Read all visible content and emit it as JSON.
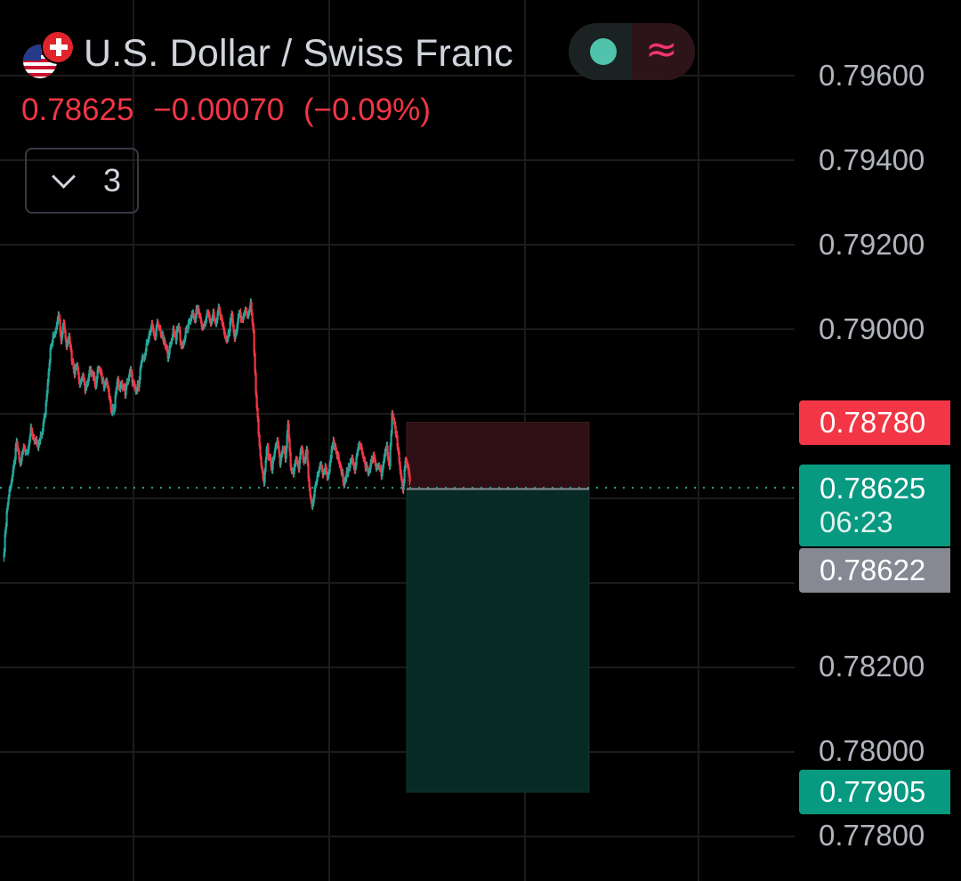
{
  "header": {
    "symbol_name": "U.S. Dollar / Swiss Franc",
    "flag_base": "us-flag",
    "flag_quote": "switzerland-flag",
    "last_price": "0.78625",
    "change": "−0.00070",
    "change_percent": "(−0.09%)",
    "indicator_count": "3"
  },
  "toggle": {
    "dot_icon": "market-status-dot-icon",
    "approx_icon": "≈"
  },
  "price_scale": {
    "ticks": [
      "0.79600",
      "0.79400",
      "0.79200",
      "0.79000",
      "0.78200",
      "0.78000",
      "0.77800"
    ],
    "stop_loss_label": "0.78780",
    "last_price_label": "0.78625",
    "countdown": "06:23",
    "entry_label": "0.78622",
    "take_profit_label": "0.77905"
  },
  "colors": {
    "up": "#26a69a",
    "down": "#f23645",
    "background": "#000000",
    "grid": "#1c1c1c",
    "last_price_tag": "#089981",
    "stop_loss_tag": "#f23645",
    "entry_tag": "#868993",
    "profit_zone": "#082a24",
    "loss_zone": "#2e1014"
  },
  "chart_data": {
    "type": "candlestick",
    "instrument": "USD/CHF",
    "ylim": [
      0.7775,
      0.7972
    ],
    "y_ticks": [
      0.796,
      0.794,
      0.792,
      0.79,
      0.782,
      0.78,
      0.778
    ],
    "grid": true,
    "last_price": 0.78625,
    "close_path": [
      [
        0,
        0.7848
      ],
      [
        3,
        0.7857
      ],
      [
        6,
        0.7862
      ],
      [
        10,
        0.7866
      ],
      [
        14,
        0.7873
      ],
      [
        18,
        0.7868
      ],
      [
        22,
        0.7872
      ],
      [
        26,
        0.7871
      ],
      [
        30,
        0.7876
      ],
      [
        34,
        0.7874
      ],
      [
        38,
        0.7872
      ],
      [
        42,
        0.7875
      ],
      [
        46,
        0.788
      ],
      [
        49,
        0.7888
      ],
      [
        52,
        0.7895
      ],
      [
        55,
        0.7898
      ],
      [
        58,
        0.79
      ],
      [
        61,
        0.7904
      ],
      [
        64,
        0.7898
      ],
      [
        67,
        0.7902
      ],
      [
        70,
        0.7896
      ],
      [
        73,
        0.7899
      ],
      [
        76,
        0.7893
      ],
      [
        79,
        0.789
      ],
      [
        82,
        0.7892
      ],
      [
        85,
        0.7887
      ],
      [
        88,
        0.7889
      ],
      [
        91,
        0.7886
      ],
      [
        94,
        0.7887
      ],
      [
        97,
        0.7891
      ],
      [
        100,
        0.7889
      ],
      [
        103,
        0.7887
      ],
      [
        106,
        0.7891
      ],
      [
        109,
        0.7889
      ],
      [
        112,
        0.7887
      ],
      [
        115,
        0.7888
      ],
      [
        118,
        0.7884
      ],
      [
        121,
        0.788
      ],
      [
        124,
        0.7882
      ],
      [
        127,
        0.7888
      ],
      [
        130,
        0.7886
      ],
      [
        133,
        0.7887
      ],
      [
        136,
        0.7885
      ],
      [
        139,
        0.7888
      ],
      [
        142,
        0.789
      ],
      [
        145,
        0.7887
      ],
      [
        148,
        0.7885
      ],
      [
        151,
        0.7887
      ],
      [
        154,
        0.7892
      ],
      [
        157,
        0.7893
      ],
      [
        160,
        0.7896
      ],
      [
        163,
        0.7899
      ],
      [
        166,
        0.7901
      ],
      [
        169,
        0.7898
      ],
      [
        172,
        0.7901
      ],
      [
        175,
        0.79
      ],
      [
        178,
        0.7898
      ],
      [
        181,
        0.7896
      ],
      [
        184,
        0.7894
      ],
      [
        187,
        0.7896
      ],
      [
        190,
        0.79
      ],
      [
        193,
        0.7898
      ],
      [
        196,
        0.7901
      ],
      [
        199,
        0.7896
      ],
      [
        202,
        0.7897
      ],
      [
        205,
        0.79
      ],
      [
        208,
        0.7901
      ],
      [
        211,
        0.7904
      ],
      [
        214,
        0.7902
      ],
      [
        217,
        0.7905
      ],
      [
        220,
        0.7903
      ],
      [
        223,
        0.79
      ],
      [
        226,
        0.7902
      ],
      [
        229,
        0.7904
      ],
      [
        232,
        0.7901
      ],
      [
        235,
        0.7904
      ],
      [
        238,
        0.7901
      ],
      [
        241,
        0.7905
      ],
      [
        244,
        0.7903
      ],
      [
        247,
        0.7899
      ],
      [
        250,
        0.7897
      ],
      [
        253,
        0.79
      ],
      [
        256,
        0.7903
      ],
      [
        259,
        0.7898
      ],
      [
        262,
        0.7901
      ],
      [
        265,
        0.7904
      ],
      [
        268,
        0.7902
      ],
      [
        271,
        0.7905
      ],
      [
        274,
        0.7903
      ],
      [
        277,
        0.7906
      ],
      [
        280,
        0.79
      ],
      [
        283,
        0.7885
      ],
      [
        286,
        0.7875
      ],
      [
        289,
        0.7868
      ],
      [
        292,
        0.7863
      ],
      [
        295,
        0.7872
      ],
      [
        298,
        0.787
      ],
      [
        301,
        0.7867
      ],
      [
        304,
        0.7871
      ],
      [
        307,
        0.7874
      ],
      [
        310,
        0.7868
      ],
      [
        313,
        0.7872
      ],
      [
        316,
        0.787
      ],
      [
        319,
        0.7877
      ],
      [
        322,
        0.7867
      ],
      [
        325,
        0.7866
      ],
      [
        328,
        0.7869
      ],
      [
        331,
        0.7867
      ],
      [
        334,
        0.7872
      ],
      [
        337,
        0.7868
      ],
      [
        340,
        0.7871
      ],
      [
        343,
        0.7862
      ],
      [
        346,
        0.7858
      ],
      [
        349,
        0.7862
      ],
      [
        352,
        0.7865
      ],
      [
        355,
        0.7868
      ],
      [
        358,
        0.7866
      ],
      [
        361,
        0.7867
      ],
      [
        364,
        0.7865
      ],
      [
        367,
        0.787
      ],
      [
        370,
        0.7873
      ],
      [
        373,
        0.7871
      ],
      [
        376,
        0.7869
      ],
      [
        379,
        0.7866
      ],
      [
        382,
        0.7864
      ],
      [
        385,
        0.7866
      ],
      [
        388,
        0.7867
      ],
      [
        391,
        0.787
      ],
      [
        394,
        0.7867
      ],
      [
        397,
        0.7871
      ],
      [
        400,
        0.7873
      ],
      [
        403,
        0.787
      ],
      [
        406,
        0.7868
      ],
      [
        409,
        0.7866
      ],
      [
        412,
        0.7868
      ],
      [
        415,
        0.787
      ],
      [
        418,
        0.7867
      ],
      [
        421,
        0.7868
      ],
      [
        424,
        0.7866
      ],
      [
        427,
        0.7869
      ],
      [
        430,
        0.7872
      ],
      [
        433,
        0.7868
      ],
      [
        436,
        0.788
      ],
      [
        439,
        0.7877
      ],
      [
        442,
        0.7873
      ],
      [
        445,
        0.7866
      ],
      [
        448,
        0.7862
      ],
      [
        451,
        0.7869
      ],
      [
        454,
        0.7867
      ],
      [
        457,
        0.7863
      ]
    ],
    "position": {
      "direction": "short",
      "entry": 0.78622,
      "stop_loss": 0.7878,
      "take_profit": 0.77905
    }
  }
}
